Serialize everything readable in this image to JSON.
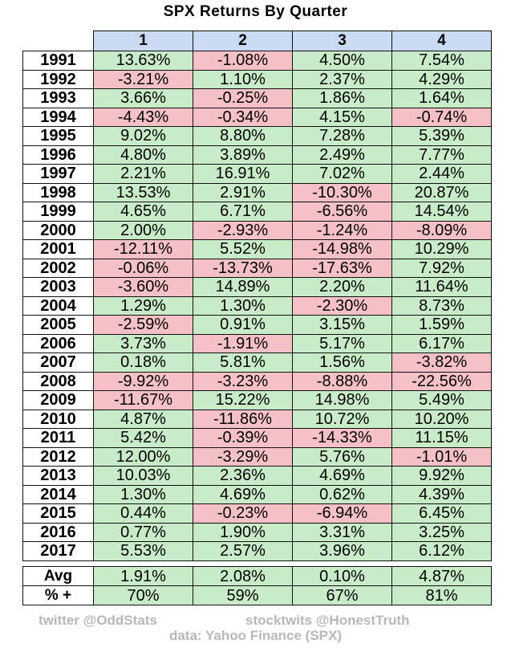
{
  "title": "SPX Returns By Quarter",
  "colors": {
    "positive": "#c9ecc8",
    "negative": "#f6c1c6",
    "header": "#c9daf2",
    "footer_text": "#b8b8b8"
  },
  "chart_data": {
    "type": "table",
    "title": "SPX Returns By Quarter",
    "columns": [
      "1",
      "2",
      "3",
      "4"
    ],
    "rows": [
      {
        "year": "1991",
        "values": [
          "13.63%",
          "-1.08%",
          "4.50%",
          "7.54%"
        ]
      },
      {
        "year": "1992",
        "values": [
          "-3.21%",
          "1.10%",
          "2.37%",
          "4.29%"
        ]
      },
      {
        "year": "1993",
        "values": [
          "3.66%",
          "-0.25%",
          "1.86%",
          "1.64%"
        ]
      },
      {
        "year": "1994",
        "values": [
          "-4.43%",
          "-0.34%",
          "4.15%",
          "-0.74%"
        ]
      },
      {
        "year": "1995",
        "values": [
          "9.02%",
          "8.80%",
          "7.28%",
          "5.39%"
        ]
      },
      {
        "year": "1996",
        "values": [
          "4.80%",
          "3.89%",
          "2.49%",
          "7.77%"
        ]
      },
      {
        "year": "1997",
        "values": [
          "2.21%",
          "16.91%",
          "7.02%",
          "2.44%"
        ]
      },
      {
        "year": "1998",
        "values": [
          "13.53%",
          "2.91%",
          "-10.30%",
          "20.87%"
        ]
      },
      {
        "year": "1999",
        "values": [
          "4.65%",
          "6.71%",
          "-6.56%",
          "14.54%"
        ]
      },
      {
        "year": "2000",
        "values": [
          "2.00%",
          "-2.93%",
          "-1.24%",
          "-8.09%"
        ]
      },
      {
        "year": "2001",
        "values": [
          "-12.11%",
          "5.52%",
          "-14.98%",
          "10.29%"
        ]
      },
      {
        "year": "2002",
        "values": [
          "-0.06%",
          "-13.73%",
          "-17.63%",
          "7.92%"
        ]
      },
      {
        "year": "2003",
        "values": [
          "-3.60%",
          "14.89%",
          "2.20%",
          "11.64%"
        ]
      },
      {
        "year": "2004",
        "values": [
          "1.29%",
          "1.30%",
          "-2.30%",
          "8.73%"
        ]
      },
      {
        "year": "2005",
        "values": [
          "-2.59%",
          "0.91%",
          "3.15%",
          "1.59%"
        ]
      },
      {
        "year": "2006",
        "values": [
          "3.73%",
          "-1.91%",
          "5.17%",
          "6.17%"
        ]
      },
      {
        "year": "2007",
        "values": [
          "0.18%",
          "5.81%",
          "1.56%",
          "-3.82%"
        ]
      },
      {
        "year": "2008",
        "values": [
          "-9.92%",
          "-3.23%",
          "-8.88%",
          "-22.56%"
        ]
      },
      {
        "year": "2009",
        "values": [
          "-11.67%",
          "15.22%",
          "14.98%",
          "5.49%"
        ]
      },
      {
        "year": "2010",
        "values": [
          "4.87%",
          "-11.86%",
          "10.72%",
          "10.20%"
        ]
      },
      {
        "year": "2011",
        "values": [
          "5.42%",
          "-0.39%",
          "-14.33%",
          "11.15%"
        ]
      },
      {
        "year": "2012",
        "values": [
          "12.00%",
          "-3.29%",
          "5.76%",
          "-1.01%"
        ]
      },
      {
        "year": "2013",
        "values": [
          "10.03%",
          "2.36%",
          "4.69%",
          "9.92%"
        ]
      },
      {
        "year": "2014",
        "values": [
          "1.30%",
          "4.69%",
          "0.62%",
          "4.39%"
        ]
      },
      {
        "year": "2015",
        "values": [
          "0.44%",
          "-0.23%",
          "-6.94%",
          "6.45%"
        ]
      },
      {
        "year": "2016",
        "values": [
          "0.77%",
          "1.90%",
          "3.31%",
          "3.25%"
        ]
      },
      {
        "year": "2017",
        "values": [
          "5.53%",
          "2.57%",
          "3.96%",
          "6.12%"
        ]
      }
    ],
    "summary": [
      {
        "label": "Avg",
        "values": [
          "1.91%",
          "2.08%",
          "0.10%",
          "4.87%"
        ]
      },
      {
        "label": "% +",
        "values": [
          "70%",
          "59%",
          "67%",
          "81%"
        ]
      }
    ]
  },
  "footer": {
    "twitter": "twitter @OddStats",
    "stocktwits": "stocktwits @HonestTruth",
    "source": "data: Yahoo Finance (SPX)"
  }
}
